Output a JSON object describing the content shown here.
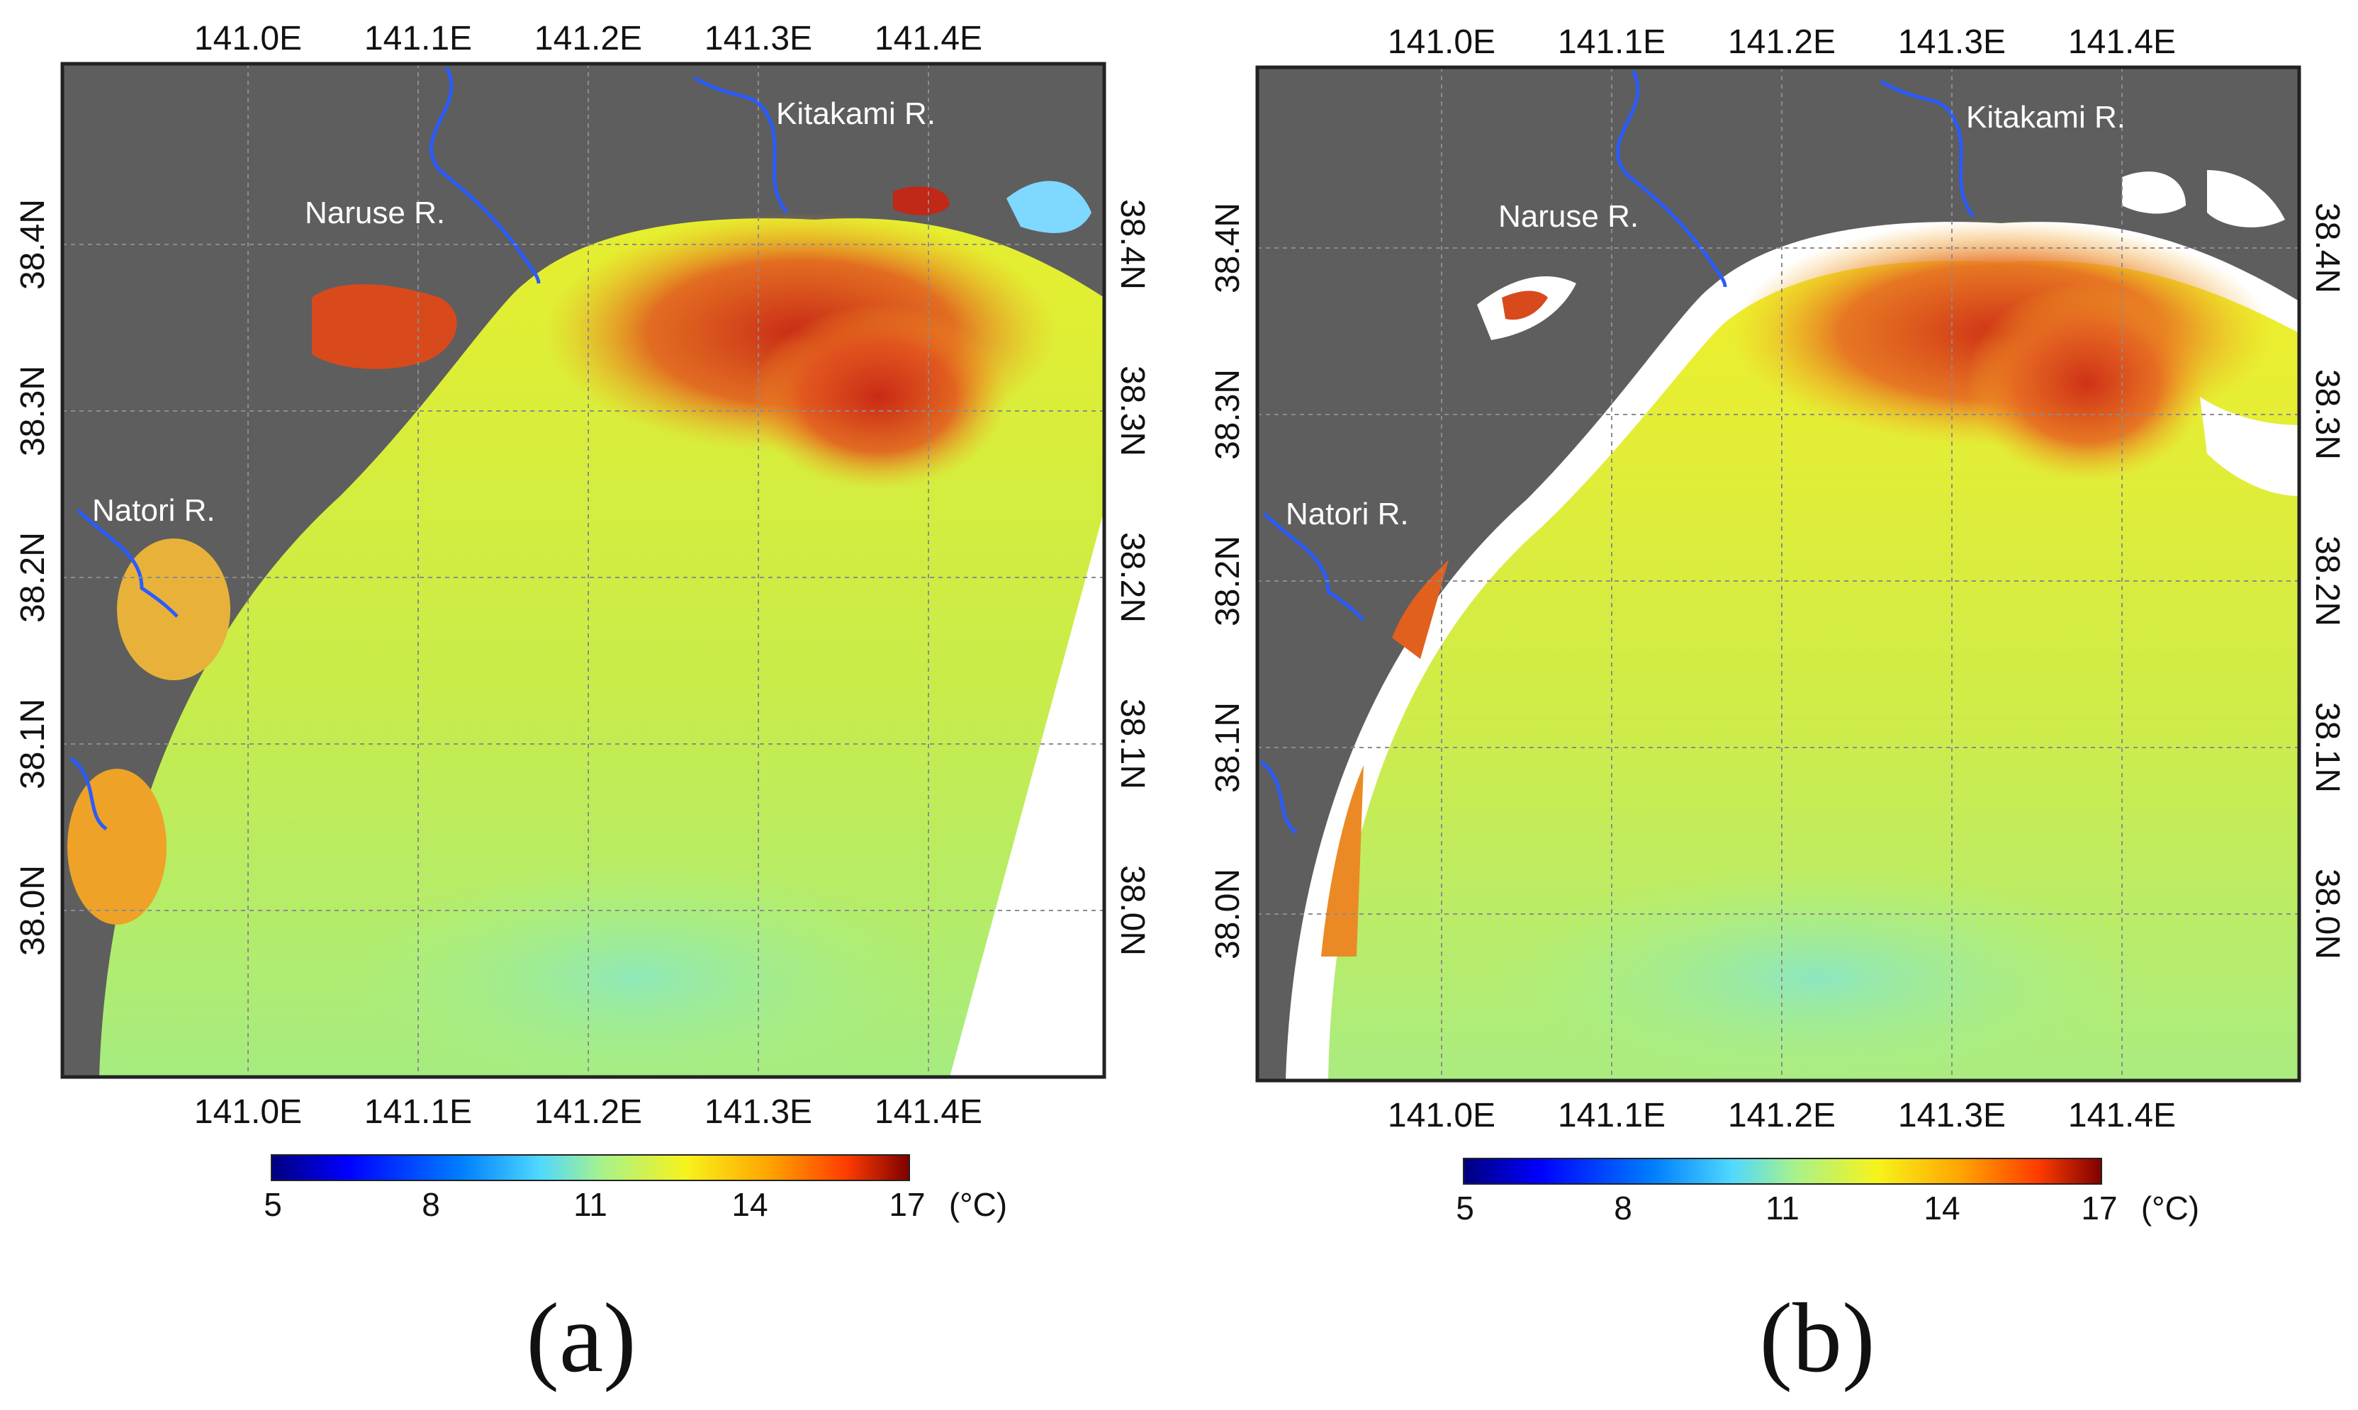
{
  "colors": {
    "land": "#5e5e5e",
    "river": "#2a5cff",
    "grid": "#999999",
    "frame": "#222222",
    "sea_base": "#cdeb3c",
    "warm": "#e8552a",
    "hot": "#c02818",
    "cool": "#7fe39a",
    "nodata": "#ffffff"
  },
  "colormap": [
    "#00007f",
    "#0000ff",
    "#0080ff",
    "#4fd8ff",
    "#a8f28a",
    "#f7f31b",
    "#ffa400",
    "#ff3d00",
    "#7f0000"
  ],
  "panels": [
    {
      "caption": "(a)",
      "lon_labels": [
        "141.0E",
        "141.1E",
        "141.2E",
        "141.3E",
        "141.4E"
      ],
      "lat_labels": [
        "38.4N",
        "38.3N",
        "38.2N",
        "38.1N",
        "38.0N"
      ],
      "rivers": [
        "Kitakami R.",
        "Naruse R.",
        "Natori R."
      ],
      "colorbar": {
        "ticks": [
          "5",
          "8",
          "11",
          "14",
          "17"
        ],
        "unit": "(°C)",
        "min": 5,
        "max": 17
      }
    },
    {
      "caption": "(b)",
      "lon_labels": [
        "141.0E",
        "141.1E",
        "141.2E",
        "141.3E",
        "141.4E"
      ],
      "lat_labels": [
        "38.4N",
        "38.3N",
        "38.2N",
        "38.1N",
        "38.0N"
      ],
      "rivers": [
        "Kitakami R.",
        "Naruse R.",
        "Natori R."
      ],
      "colorbar": {
        "ticks": [
          "5",
          "8",
          "11",
          "14",
          "17"
        ],
        "unit": "(°C)",
        "min": 5,
        "max": 17
      }
    }
  ]
}
